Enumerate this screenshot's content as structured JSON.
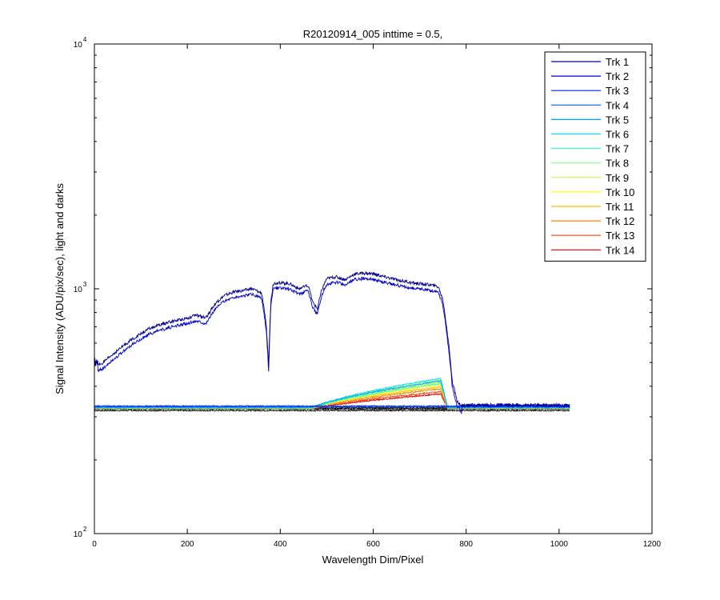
{
  "chart_data": {
    "type": "line",
    "title": "R20120914_005 inttime = 0.5,",
    "xlabel": "Wavelength Dim/Pixel",
    "ylabel": "Signal Intensity (ADU/pix/sec), light and darks",
    "xlim": [
      0,
      1200
    ],
    "ylim": [
      100,
      10000
    ],
    "yscale": "log",
    "grid": false,
    "legend_position": "top-right",
    "x_ticks": [
      "0",
      "200",
      "400",
      "600",
      "800",
      "1000",
      "1200"
    ],
    "y_ticks": [
      {
        "base": "10",
        "exp": "2"
      },
      {
        "base": "10",
        "exp": "3"
      },
      {
        "base": "10",
        "exp": "4"
      }
    ],
    "series": [
      {
        "name": "Trk 1",
        "color": "#00008f",
        "kind": "bright",
        "level": 1.0
      },
      {
        "name": "Trk 2",
        "color": "#0000d0",
        "kind": "bright",
        "level": 0.95
      },
      {
        "name": "Trk 3",
        "color": "#0020ff",
        "kind": "flat",
        "base": 332
      },
      {
        "name": "Trk 4",
        "color": "#0060ff",
        "kind": "flat",
        "base": 330
      },
      {
        "name": "Trk 5",
        "color": "#00a0ff",
        "kind": "hump",
        "base": 327,
        "peak": 420
      },
      {
        "name": "Trk 6",
        "color": "#00e0ff",
        "kind": "hump",
        "base": 327,
        "peak": 430
      },
      {
        "name": "Trk 7",
        "color": "#40ffbf",
        "kind": "hump",
        "base": 326,
        "peak": 410
      },
      {
        "name": "Trk 8",
        "color": "#80ff80",
        "kind": "hump",
        "base": 326,
        "peak": 425
      },
      {
        "name": "Trk 9",
        "color": "#bfff40",
        "kind": "hump",
        "base": 326,
        "peak": 415
      },
      {
        "name": "Trk 10",
        "color": "#ffff00",
        "kind": "hump",
        "base": 325,
        "peak": 405
      },
      {
        "name": "Trk 11",
        "color": "#ffbf00",
        "kind": "hump",
        "base": 325,
        "peak": 398
      },
      {
        "name": "Trk 12",
        "color": "#ff8000",
        "kind": "hump",
        "base": 325,
        "peak": 390
      },
      {
        "name": "Trk 13",
        "color": "#ff4000",
        "kind": "hump",
        "base": 324,
        "peak": 380
      },
      {
        "name": "Trk 14",
        "color": "#e00000",
        "kind": "hump",
        "base": 324,
        "peak": 372
      }
    ],
    "dark_floor": {
      "color": "#000000",
      "levels": [
        318,
        322,
        325,
        328
      ]
    },
    "bright_profile": {
      "x": [
        0,
        20,
        30,
        50,
        80,
        120,
        160,
        200,
        220,
        240,
        260,
        280,
        300,
        340,
        360,
        370,
        375,
        380,
        385,
        395,
        420,
        440,
        460,
        470,
        480,
        490,
        500,
        520,
        540,
        560,
        580,
        600,
        640,
        680,
        700,
        720,
        740,
        750,
        760,
        770,
        780,
        790
      ],
      "y": [
        480,
        500,
        520,
        560,
        620,
        690,
        730,
        760,
        780,
        760,
        870,
        940,
        970,
        1000,
        960,
        700,
        480,
        900,
        1050,
        1060,
        1050,
        1000,
        1030,
        880,
        830,
        1000,
        1100,
        1120,
        1090,
        1150,
        1160,
        1150,
        1100,
        1060,
        1050,
        1040,
        1020,
        900,
        650,
        420,
        350,
        330
      ]
    }
  }
}
